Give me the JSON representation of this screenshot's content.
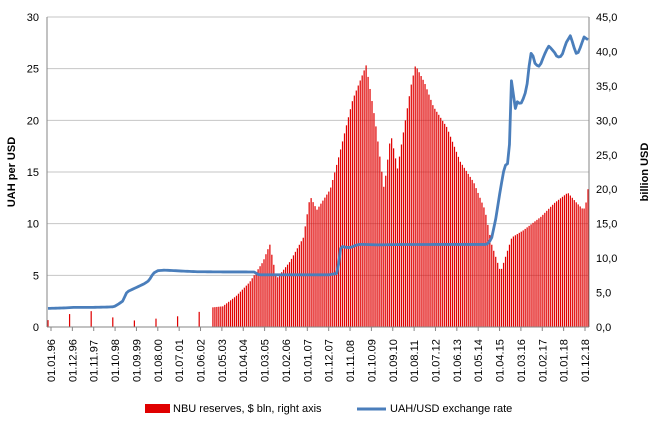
{
  "chart_data": {
    "type": "bar+line",
    "title": "",
    "xlabel": "",
    "ylabel_left": "UAH per USD",
    "ylabel_right": "billion USD",
    "ylim_left": [
      0,
      30
    ],
    "ylim_right": [
      0,
      45
    ],
    "yticks_left": [
      "0",
      "5",
      "10",
      "15",
      "20",
      "25",
      "30"
    ],
    "yticks_right": [
      "0,0",
      "5,0",
      "10,0",
      "15,0",
      "20,0",
      "25,0",
      "30,0",
      "35,0",
      "40,0",
      "45,0"
    ],
    "x_tick_labels": [
      "01.01.96",
      "01.12.96",
      "01.11.97",
      "01.10.98",
      "01.09.99",
      "01.08.00",
      "01.07.01",
      "01.06.02",
      "01.05.03",
      "01.04.04",
      "01.03.05",
      "01.02.06",
      "01.01.07",
      "01.12.07",
      "01.11.08",
      "01.10.09",
      "01.09.10",
      "01.08.11",
      "01.07.12",
      "01.06.13",
      "01.05.14",
      "01.04.15",
      "01.03.16",
      "01.02.17",
      "01.01.18",
      "01.12.18"
    ],
    "grid": "horizontal",
    "legend_position": "bottom",
    "series": [
      {
        "name": "NBU reserves, $ bln, right axis",
        "kind": "bar",
        "axis": "right",
        "color": "#e00000",
        "anchors": [
          [
            0,
            1.0
          ],
          [
            11,
            2.0
          ],
          [
            22,
            2.4
          ],
          [
            33,
            0.8
          ],
          [
            44,
            1.1
          ],
          [
            55,
            1.4
          ],
          [
            66,
            2.0
          ],
          [
            72,
            2.8
          ],
          [
            78,
            3.0
          ],
          [
            84,
            4.5
          ],
          [
            90,
            6.5
          ],
          [
            96,
            9.5
          ],
          [
            99,
            12.0
          ],
          [
            102,
            7.0
          ],
          [
            108,
            9.5
          ],
          [
            114,
            13.0
          ],
          [
            117,
            19.0
          ],
          [
            120,
            17.0
          ],
          [
            126,
            20.0
          ],
          [
            130,
            25.0
          ],
          [
            136,
            33.0
          ],
          [
            142,
            38.0
          ],
          [
            146,
            30.0
          ],
          [
            150,
            20.0
          ],
          [
            153,
            28.0
          ],
          [
            156,
            23.0
          ],
          [
            159,
            29.0
          ],
          [
            162,
            35.0
          ],
          [
            164,
            38.0
          ],
          [
            168,
            35.5
          ],
          [
            172,
            32.0
          ],
          [
            178,
            29.0
          ],
          [
            184,
            24.0
          ],
          [
            190,
            21.0
          ],
          [
            195,
            17.0
          ],
          [
            198,
            12.0
          ],
          [
            202,
            8.0
          ],
          [
            204,
            10.0
          ],
          [
            207,
            13.0
          ],
          [
            212,
            14.0
          ],
          [
            216,
            15.0
          ],
          [
            220,
            16.0
          ],
          [
            226,
            18.0
          ],
          [
            230,
            19.0
          ],
          [
            232,
            19.5
          ],
          [
            236,
            18.0
          ],
          [
            239,
            17.0
          ],
          [
            240,
            17.8
          ],
          [
            241,
            20.0
          ]
        ]
      },
      {
        "name": "UAH/USD exchange rate",
        "kind": "line",
        "axis": "left",
        "color": "#4a7ebb",
        "anchors": [
          [
            0,
            1.8
          ],
          [
            8,
            1.85
          ],
          [
            12,
            1.9
          ],
          [
            20,
            1.9
          ],
          [
            27,
            1.93
          ],
          [
            30,
            1.96
          ],
          [
            32,
            2.2
          ],
          [
            34,
            2.5
          ],
          [
            36,
            3.4
          ],
          [
            38,
            3.6
          ],
          [
            40,
            3.8
          ],
          [
            44,
            4.2
          ],
          [
            46,
            4.5
          ],
          [
            48,
            5.2
          ],
          [
            50,
            5.45
          ],
          [
            53,
            5.5
          ],
          [
            58,
            5.45
          ],
          [
            62,
            5.4
          ],
          [
            68,
            5.35
          ],
          [
            80,
            5.33
          ],
          [
            88,
            5.33
          ],
          [
            94,
            5.32
          ],
          [
            96,
            5.05
          ],
          [
            110,
            5.05
          ],
          [
            125,
            5.05
          ],
          [
            128,
            5.05
          ],
          [
            132,
            5.2
          ],
          [
            133,
            7.5
          ],
          [
            134,
            7.8
          ],
          [
            136,
            7.7
          ],
          [
            138,
            7.7
          ],
          [
            140,
            7.9
          ],
          [
            142,
            8.0
          ],
          [
            150,
            7.95
          ],
          [
            160,
            7.98
          ],
          [
            180,
            7.99
          ],
          [
            200,
            7.99
          ],
          [
            202,
            8.5
          ],
          [
            204,
            10.5
          ],
          [
            206,
            13.2
          ],
          [
            208,
            15.6
          ],
          [
            210,
            15.9
          ],
          [
            211,
            24.0
          ],
          [
            212,
            22.5
          ],
          [
            213,
            21.0
          ],
          [
            214,
            22.0
          ],
          [
            215,
            21.5
          ],
          [
            216,
            21.8
          ],
          [
            218,
            23.0
          ],
          [
            219,
            25.0
          ],
          [
            220,
            26.5
          ],
          [
            221,
            26.2
          ],
          [
            222,
            25.4
          ],
          [
            224,
            25.2
          ],
          [
            226,
            26.3
          ],
          [
            228,
            27.2
          ],
          [
            229,
            27.0
          ],
          [
            231,
            26.5
          ],
          [
            232,
            26.1
          ],
          [
            234,
            26.2
          ],
          [
            236,
            27.5
          ],
          [
            238,
            28.2
          ],
          [
            240,
            26.8
          ],
          [
            241,
            26.3
          ],
          [
            243,
            27.3
          ],
          [
            244,
            28.1
          ],
          [
            246,
            27.8
          ]
        ]
      }
    ]
  },
  "legend": {
    "bar_label": "NBU reserves, $ bln, right axis",
    "line_label": "UAH/USD exchange rate"
  }
}
